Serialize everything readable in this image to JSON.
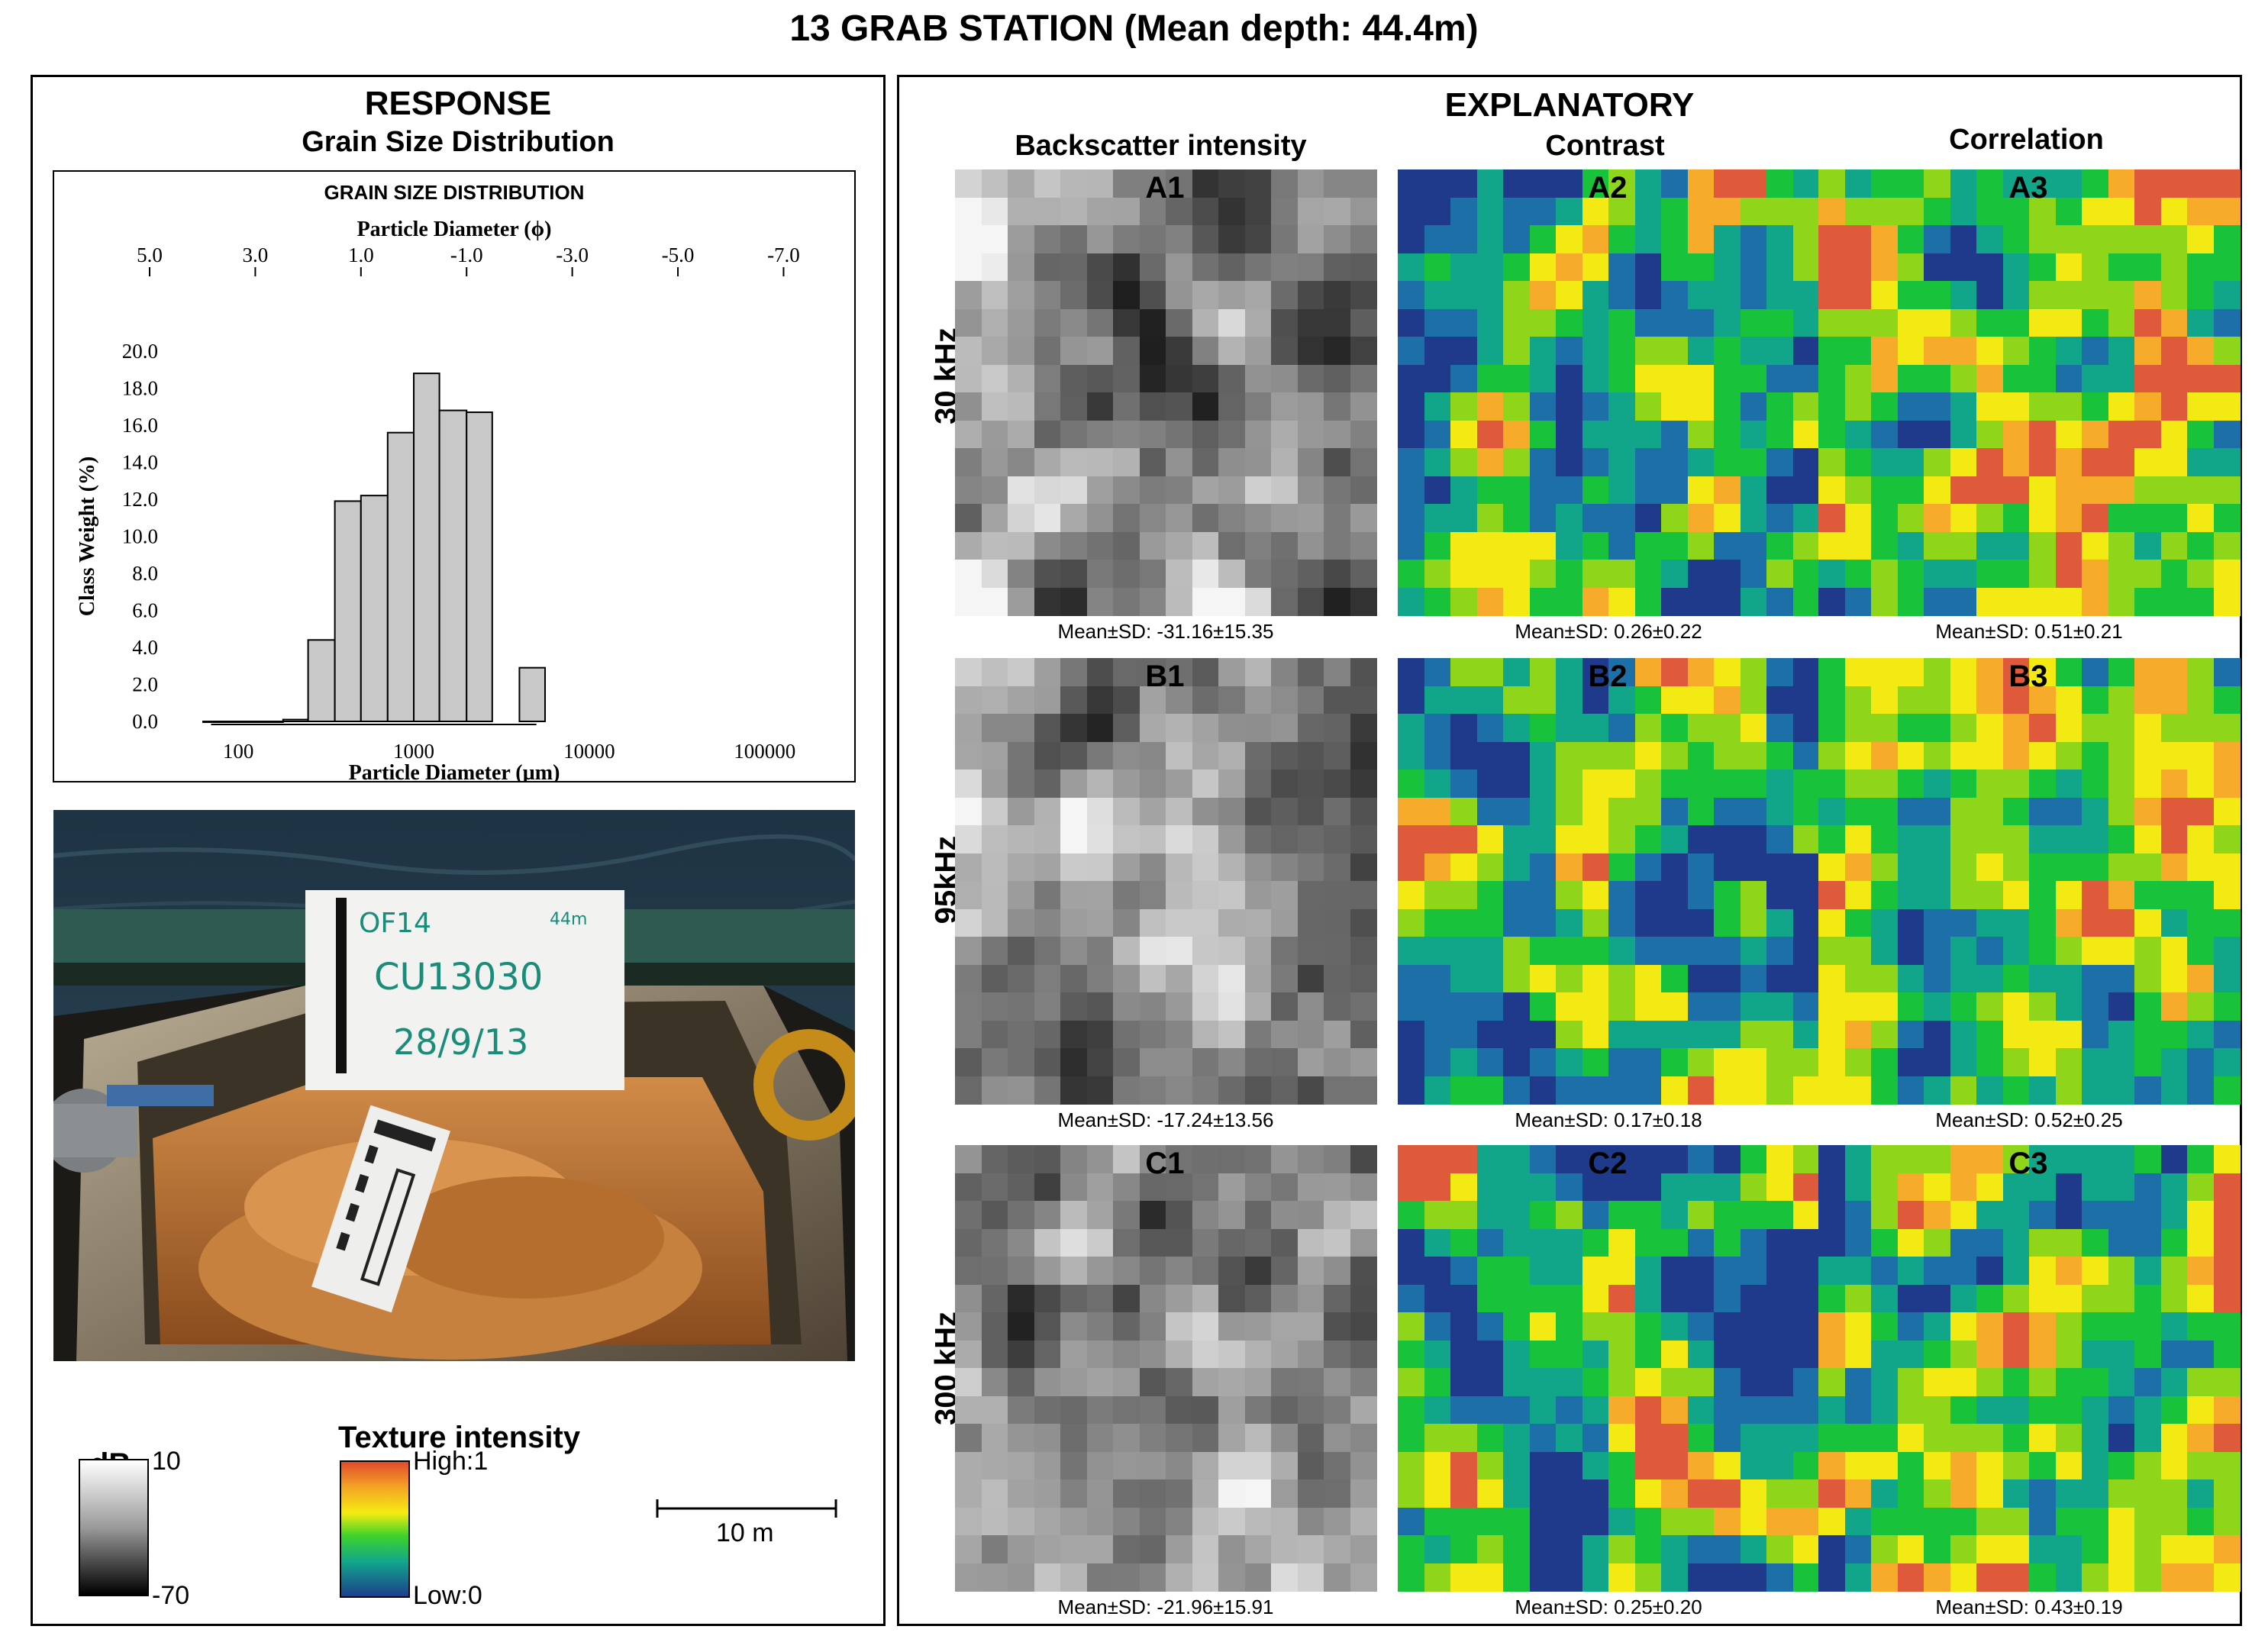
{
  "page_title": "13 GRAB STATION (Mean depth: 44.4m)",
  "response": {
    "heading": "RESPONSE",
    "subheading": "Grain Size Distribution"
  },
  "explanatory": {
    "heading": "EXPLANATORY",
    "columns": [
      "Backscatter intensity",
      "Contrast",
      "Correlation"
    ],
    "rows": [
      "30 kHz",
      "95kHz",
      "300 kHz"
    ],
    "panels": [
      {
        "id": "A1",
        "type": "gray",
        "stat": "Mean±SD: -31.16±15.35"
      },
      {
        "id": "A2",
        "type": "contrast",
        "stat": "Mean±SD: 0.26±0.22"
      },
      {
        "id": "A3",
        "type": "correlation",
        "stat": "Mean±SD: 0.51±0.21"
      },
      {
        "id": "B1",
        "type": "gray",
        "stat": "Mean±SD: -17.24±13.56"
      },
      {
        "id": "B2",
        "type": "contrast",
        "stat": "Mean±SD:  0.17±0.18"
      },
      {
        "id": "B3",
        "type": "correlation",
        "stat": "Mean±SD:  0.52±0.25"
      },
      {
        "id": "C1",
        "type": "gray",
        "stat": "Mean±SD:  -21.96±15.91"
      },
      {
        "id": "C2",
        "type": "contrast",
        "stat": "Mean±SD:  0.25±0.20"
      },
      {
        "id": "C3",
        "type": "correlation",
        "stat": "Mean±SD:  0.43±0.19"
      }
    ]
  },
  "chart_data": {
    "type": "bar",
    "title": "GRAIN SIZE DISTRIBUTION",
    "top_axis_label": "Particle Diameter (ϕ)",
    "top_ticks": [
      "5.0",
      "3.0",
      "1.0",
      "-1.0",
      "-3.0",
      "-5.0",
      "-7.0"
    ],
    "xlabel": "Particle Diameter (µm)",
    "x_ticks": [
      "100",
      "1000",
      "10000",
      "100000"
    ],
    "ylabel": "Class Weight (%)",
    "y_ticks": [
      "0.0",
      "2.0",
      "4.0",
      "6.0",
      "8.0",
      "10.0",
      "12.0",
      "14.0",
      "16.0",
      "18.0",
      "20.0"
    ],
    "ylim": [
      0,
      20
    ],
    "bins_um_lower": [
      63,
      90,
      125,
      180,
      250,
      355,
      500,
      710,
      1000,
      1400,
      2000,
      4000
    ],
    "bins_um_upper": [
      90,
      125,
      180,
      250,
      355,
      500,
      710,
      1000,
      1400,
      2000,
      2800,
      5600
    ],
    "values": [
      0.0,
      0.0,
      0.0,
      0.1,
      4.4,
      11.9,
      12.2,
      15.6,
      18.8,
      16.8,
      16.7,
      2.9
    ]
  },
  "legend": {
    "db_title": "dB",
    "db_max": "10",
    "db_min": "-70",
    "texture_title": "Texture intensity",
    "texture_high": "High:1",
    "texture_low": "Low:0",
    "scale_label": "10 m"
  },
  "photo": {
    "board_line1": "OF14",
    "board_depth": "44m",
    "board_line2": "CU13030",
    "board_line3": "28/9/13"
  },
  "colors": {
    "bar_fill": "#c8c8c8",
    "texture_ramp": [
      "#1f3a8a",
      "#1d6fa8",
      "#11a58a",
      "#18c23a",
      "#8fd61a",
      "#f2ea12",
      "#f6ac2a",
      "#df5a3a"
    ]
  }
}
